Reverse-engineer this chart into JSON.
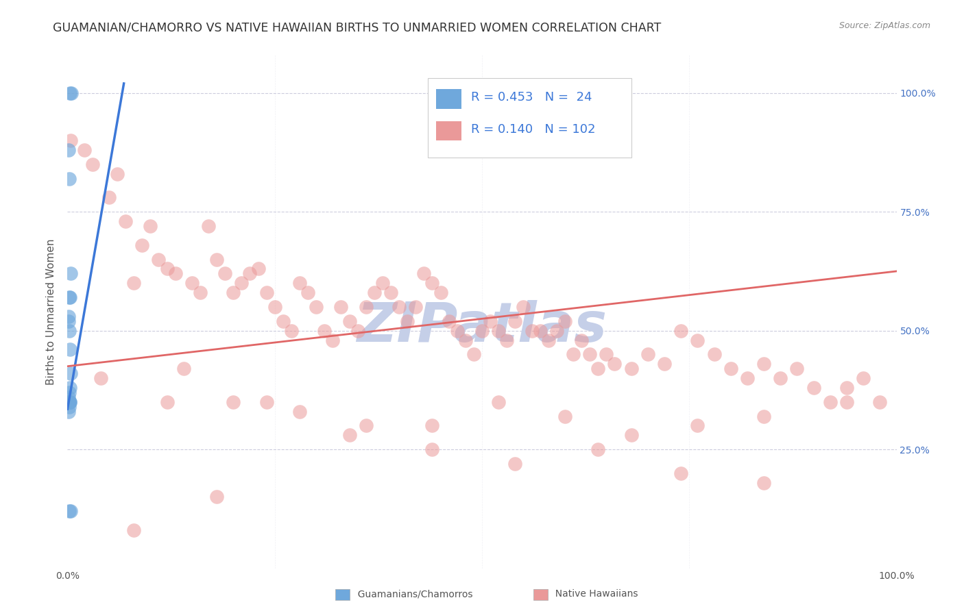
{
  "title": "GUAMANIAN/CHAMORRO VS NATIVE HAWAIIAN BIRTHS TO UNMARRIED WOMEN CORRELATION CHART",
  "source": "Source: ZipAtlas.com",
  "ylabel": "Births to Unmarried Women",
  "xlim": [
    0.0,
    1.0
  ],
  "ylim": [
    0.0,
    1.08
  ],
  "blue_R": 0.453,
  "blue_N": 24,
  "pink_R": 0.14,
  "pink_N": 102,
  "blue_color": "#6fa8dc",
  "blue_edge_color": "#6fa8dc",
  "pink_color": "#ea9999",
  "pink_edge_color": "#ea9999",
  "blue_line_color": "#3c78d8",
  "pink_line_color": "#e06666",
  "legend_text_color": "#3c78d8",
  "background_color": "#ffffff",
  "grid_color": "#ccccdd",
  "watermark_color": "#c5cfe8",
  "title_color": "#333333",
  "source_color": "#888888",
  "ylabel_color": "#555555",
  "tick_color": "#555555",
  "right_tick_color": "#4472c4",
  "bottom_legend_blue_color": "#6fa8dc",
  "bottom_legend_pink_color": "#ea9999",
  "blue_x": [
    0.003,
    0.005,
    0.001,
    0.002,
    0.004,
    0.003,
    0.002,
    0.001,
    0.001,
    0.002,
    0.003,
    0.004,
    0.003,
    0.002,
    0.001,
    0.001,
    0.002,
    0.003,
    0.002,
    0.001,
    0.002,
    0.003,
    0.004,
    0.002
  ],
  "blue_y": [
    1.0,
    1.0,
    0.88,
    0.82,
    0.62,
    0.57,
    0.57,
    0.53,
    0.52,
    0.5,
    0.46,
    0.41,
    0.38,
    0.37,
    0.36,
    0.35,
    0.35,
    0.35,
    0.34,
    0.33,
    0.35,
    0.35,
    0.12,
    0.12
  ],
  "pink_x": [
    0.004,
    0.02,
    0.03,
    0.05,
    0.06,
    0.07,
    0.08,
    0.09,
    0.1,
    0.11,
    0.12,
    0.13,
    0.15,
    0.16,
    0.17,
    0.18,
    0.19,
    0.2,
    0.21,
    0.22,
    0.23,
    0.24,
    0.25,
    0.26,
    0.27,
    0.28,
    0.29,
    0.3,
    0.31,
    0.32,
    0.33,
    0.34,
    0.35,
    0.36,
    0.37,
    0.38,
    0.39,
    0.4,
    0.41,
    0.42,
    0.43,
    0.44,
    0.45,
    0.46,
    0.47,
    0.48,
    0.49,
    0.5,
    0.51,
    0.52,
    0.53,
    0.54,
    0.55,
    0.56,
    0.57,
    0.58,
    0.59,
    0.6,
    0.61,
    0.62,
    0.63,
    0.64,
    0.65,
    0.66,
    0.68,
    0.7,
    0.72,
    0.74,
    0.76,
    0.78,
    0.8,
    0.82,
    0.84,
    0.86,
    0.88,
    0.9,
    0.92,
    0.94,
    0.96,
    0.98,
    0.12,
    0.2,
    0.28,
    0.36,
    0.44,
    0.52,
    0.6,
    0.68,
    0.76,
    0.84,
    0.04,
    0.14,
    0.24,
    0.34,
    0.44,
    0.54,
    0.64,
    0.74,
    0.84,
    0.94,
    0.08,
    0.18
  ],
  "pink_y": [
    0.9,
    0.88,
    0.85,
    0.78,
    0.83,
    0.73,
    0.6,
    0.68,
    0.72,
    0.65,
    0.63,
    0.62,
    0.6,
    0.58,
    0.72,
    0.65,
    0.62,
    0.58,
    0.6,
    0.62,
    0.63,
    0.58,
    0.55,
    0.52,
    0.5,
    0.6,
    0.58,
    0.55,
    0.5,
    0.48,
    0.55,
    0.52,
    0.5,
    0.55,
    0.58,
    0.6,
    0.58,
    0.55,
    0.52,
    0.55,
    0.62,
    0.6,
    0.58,
    0.52,
    0.5,
    0.48,
    0.45,
    0.5,
    0.52,
    0.5,
    0.48,
    0.52,
    0.55,
    0.5,
    0.5,
    0.48,
    0.5,
    0.52,
    0.45,
    0.48,
    0.45,
    0.42,
    0.45,
    0.43,
    0.42,
    0.45,
    0.43,
    0.5,
    0.48,
    0.45,
    0.42,
    0.4,
    0.43,
    0.4,
    0.42,
    0.38,
    0.35,
    0.38,
    0.4,
    0.35,
    0.35,
    0.35,
    0.33,
    0.3,
    0.3,
    0.35,
    0.32,
    0.28,
    0.3,
    0.32,
    0.4,
    0.42,
    0.35,
    0.28,
    0.25,
    0.22,
    0.25,
    0.2,
    0.18,
    0.35,
    0.08,
    0.15
  ],
  "blue_line_x0": 0.0,
  "blue_line_x1": 0.068,
  "blue_line_y0": 0.335,
  "blue_line_y1": 1.02,
  "pink_line_x0": 0.0,
  "pink_line_x1": 1.0,
  "pink_line_y0": 0.425,
  "pink_line_y1": 0.625,
  "title_fontsize": 12.5,
  "axis_label_fontsize": 11,
  "tick_fontsize": 10,
  "legend_fontsize": 13,
  "source_fontsize": 9
}
